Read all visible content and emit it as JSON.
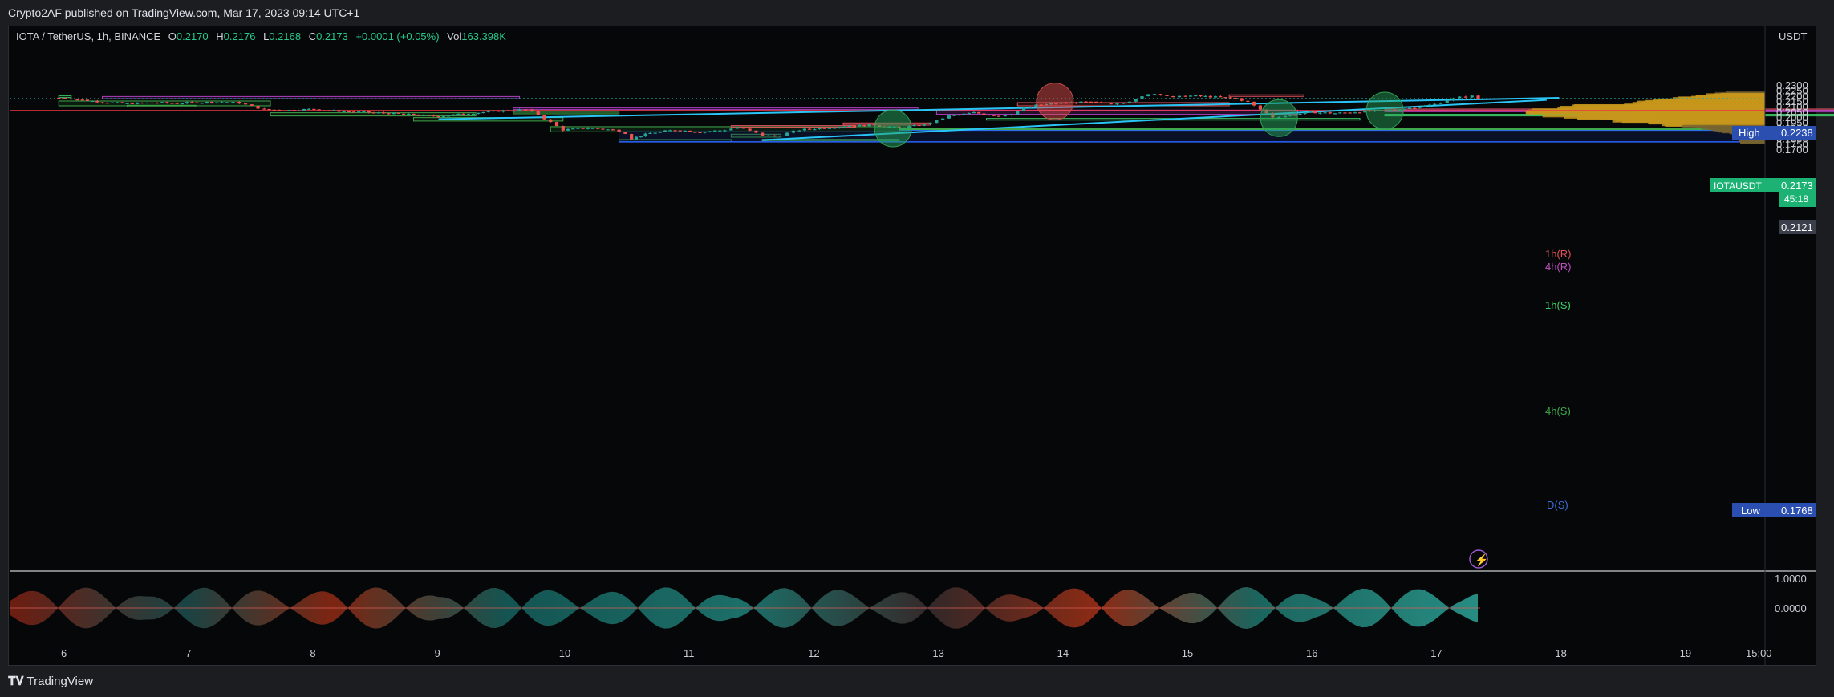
{
  "header": {
    "published": "Crypto2AF published on TradingView.com, Mar 17, 2023 09:14 UTC+1"
  },
  "legend": {
    "symbol": "IOTA / TetherUS, 1h, BINANCE",
    "o_label": "O",
    "o": "0.2170",
    "h_label": "H",
    "h": "0.2176",
    "l_label": "L",
    "l": "0.2168",
    "c_label": "C",
    "c": "0.2173",
    "change": "+0.0001 (+0.05%)",
    "vol_label": "Vol",
    "vol": "163.398K"
  },
  "price_axis": {
    "currency": "USDT",
    "ticks": [
      "0.2300",
      "0.2250",
      "0.2200",
      "0.2150",
      "0.2100",
      "0.2050",
      "0.2000",
      "0.1950",
      "0.1900",
      "0.1850",
      "0.1800",
      "0.1750",
      "0.1700"
    ],
    "tick_values": [
      0.23,
      0.225,
      0.22,
      0.215,
      0.21,
      0.205,
      0.2,
      0.195,
      0.19,
      0.185,
      0.18,
      0.175,
      0.17
    ],
    "high_label": "High",
    "high_value": "0.2238",
    "low_label": "Low",
    "low_value": "0.1768",
    "symbol_tag": "IOTAUSDT",
    "last_price": "0.2173",
    "countdown": "45:18",
    "marker_price": "0.2121"
  },
  "osc_axis": {
    "ticks": [
      "1.0000",
      "0.0000"
    ]
  },
  "time_axis": {
    "labels": [
      "6",
      "7",
      "8",
      "9",
      "10",
      "11",
      "12",
      "13",
      "14",
      "15",
      "16",
      "17",
      "18",
      "19",
      "15:00"
    ]
  },
  "zones": {
    "r1h": "1h(R)",
    "r4h": "4h(R)",
    "s1h": "1h(S)",
    "s4h": "4h(S)",
    "sd": "D(S)"
  },
  "footer": {
    "brand": "TradingView"
  },
  "colors": {
    "up": "#26a69a",
    "down": "#ef5350",
    "trendline": "#29c5f6",
    "hline": "#f23645",
    "volume_profile": "#c7971c",
    "value_area": "#2962ff"
  },
  "chart_data": {
    "type": "candlestick",
    "title": "IOTA / TetherUS, 1h, BINANCE",
    "x_labels": [
      "6",
      "7",
      "8",
      "9",
      "10",
      "11",
      "12",
      "13",
      "14",
      "15",
      "16",
      "17",
      "18",
      "19",
      "15:00"
    ],
    "ylim": [
      0.17,
      0.232
    ],
    "grid": false,
    "close_path": [
      [
        5.9,
        0.218
      ],
      [
        6.0,
        0.2178
      ],
      [
        6.1,
        0.2165
      ],
      [
        6.3,
        0.214
      ],
      [
        6.5,
        0.2125
      ],
      [
        6.7,
        0.2135
      ],
      [
        6.9,
        0.213
      ],
      [
        7.1,
        0.2138
      ],
      [
        7.3,
        0.214
      ],
      [
        7.4,
        0.2132
      ],
      [
        7.5,
        0.21
      ],
      [
        7.6,
        0.207
      ],
      [
        7.8,
        0.2065
      ],
      [
        8.0,
        0.2075
      ],
      [
        8.2,
        0.2055
      ],
      [
        8.4,
        0.2045
      ],
      [
        8.6,
        0.2035
      ],
      [
        8.8,
        0.202
      ],
      [
        9.0,
        0.2005
      ],
      [
        9.2,
        0.203
      ],
      [
        9.4,
        0.205
      ],
      [
        9.6,
        0.2065
      ],
      [
        9.7,
        0.207
      ],
      [
        9.8,
        0.202
      ],
      [
        9.9,
        0.195
      ],
      [
        10.0,
        0.188
      ],
      [
        10.2,
        0.19
      ],
      [
        10.4,
        0.188
      ],
      [
        10.5,
        0.185
      ],
      [
        10.55,
        0.18
      ],
      [
        10.7,
        0.185
      ],
      [
        10.9,
        0.188
      ],
      [
        11.1,
        0.186
      ],
      [
        11.3,
        0.188
      ],
      [
        11.4,
        0.1905
      ],
      [
        11.5,
        0.187
      ],
      [
        11.6,
        0.183
      ],
      [
        11.7,
        0.182
      ],
      [
        11.8,
        0.185
      ],
      [
        11.9,
        0.188
      ],
      [
        12.1,
        0.19
      ],
      [
        12.3,
        0.192
      ],
      [
        12.5,
        0.1925
      ],
      [
        12.7,
        0.19
      ],
      [
        12.9,
        0.193
      ],
      [
        13.0,
        0.197
      ],
      [
        13.1,
        0.201
      ],
      [
        13.3,
        0.204
      ],
      [
        13.5,
        0.201
      ],
      [
        13.6,
        0.203
      ],
      [
        13.7,
        0.208
      ],
      [
        13.8,
        0.211
      ],
      [
        14.0,
        0.213
      ],
      [
        14.2,
        0.214
      ],
      [
        14.4,
        0.2125
      ],
      [
        14.5,
        0.214
      ],
      [
        14.6,
        0.216
      ],
      [
        14.7,
        0.222
      ],
      [
        14.8,
        0.2215
      ],
      [
        14.9,
        0.218
      ],
      [
        15.0,
        0.22
      ],
      [
        15.2,
        0.219
      ],
      [
        15.4,
        0.2175
      ],
      [
        15.5,
        0.214
      ],
      [
        15.6,
        0.207
      ],
      [
        15.7,
        0.2
      ],
      [
        15.8,
        0.201
      ],
      [
        16.0,
        0.2045
      ],
      [
        16.2,
        0.2035
      ],
      [
        16.4,
        0.205
      ],
      [
        16.6,
        0.206
      ],
      [
        16.8,
        0.2085
      ],
      [
        17.0,
        0.212
      ],
      [
        17.1,
        0.216
      ],
      [
        17.2,
        0.2185
      ],
      [
        17.3,
        0.2195
      ],
      [
        17.35,
        0.2173
      ]
    ],
    "horizontal_line": 0.206,
    "trendlines": [
      [
        [
          9.0,
          0.198
        ],
        [
          18.0,
          0.218
        ]
      ],
      [
        [
          11.6,
          0.1785
        ],
        [
          17.9,
          0.216
        ]
      ]
    ],
    "support_resistance_labels": [
      "1h(R)",
      "4h(R)",
      "1h(S)",
      "4h(S)",
      "D(S)"
    ],
    "high": 0.2238,
    "low": 0.1768,
    "last": 0.2173
  }
}
